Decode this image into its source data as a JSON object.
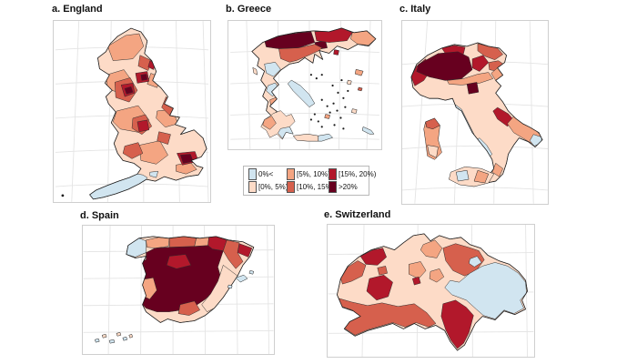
{
  "figure": {
    "type": "multi-panel choropleth map figure",
    "panels": [
      {
        "key": "england",
        "label": "a. England"
      },
      {
        "key": "greece",
        "label": "b. Greece"
      },
      {
        "key": "italy",
        "label": "c. Italy"
      },
      {
        "key": "spain",
        "label": "d. Spain"
      },
      {
        "key": "switzerland",
        "label": "e. Switzerland"
      }
    ],
    "legend": {
      "layout": "2 rows x 3 columns, column-major order",
      "bins": [
        {
          "label": "0%<",
          "color": "#d1e5f0"
        },
        {
          "label": "[0%, 5%)",
          "color": "#fddbc7"
        },
        {
          "label": "[5%, 10%)",
          "color": "#f4a582"
        },
        {
          "label": "[10%, 15%)",
          "color": "#d6604d"
        },
        {
          "label": "[15%, 20%)",
          "color": "#b2182b"
        },
        {
          "label": ">20%",
          "color": "#67001f"
        }
      ]
    }
  }
}
